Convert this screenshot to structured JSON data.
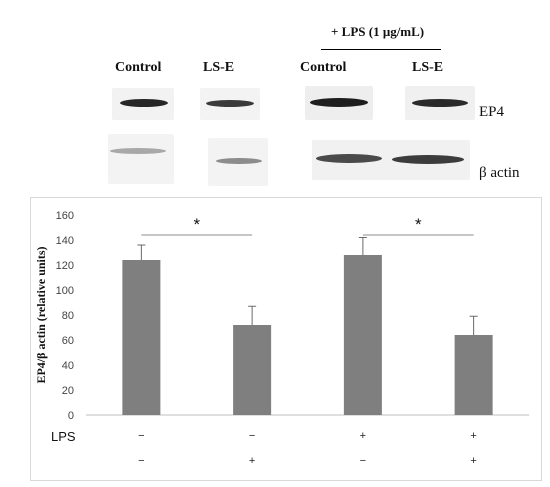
{
  "blot": {
    "lps_header": "+ LPS (1 μg/mL)",
    "lane_labels": [
      "Control",
      "LS-E",
      "Control",
      "LS-E"
    ],
    "protein_labels": [
      "EP4",
      "β actin"
    ]
  },
  "chart_data": {
    "type": "bar",
    "title": "",
    "xlabel": "",
    "ylabel": "EP4/β actin (relative units)",
    "ylim": [
      0,
      160
    ],
    "yticks": [
      0,
      20,
      40,
      60,
      80,
      100,
      120,
      140,
      160
    ],
    "categories": [
      "Control",
      "LS-E",
      "Control + LPS",
      "LS-E + LPS"
    ],
    "values": [
      124,
      72,
      128,
      64
    ],
    "errors": [
      12,
      15,
      14,
      15
    ],
    "bar_color": "#7f7f7f",
    "row_labels": [
      "LPS",
      ""
    ],
    "row1_signs": [
      "−",
      "−",
      "+",
      "+"
    ],
    "row2_signs": [
      "−",
      "+",
      "−",
      "+"
    ],
    "significance": [
      {
        "from": 0,
        "to": 1,
        "label": "*"
      },
      {
        "from": 2,
        "to": 3,
        "label": "*"
      }
    ],
    "grid": false
  }
}
